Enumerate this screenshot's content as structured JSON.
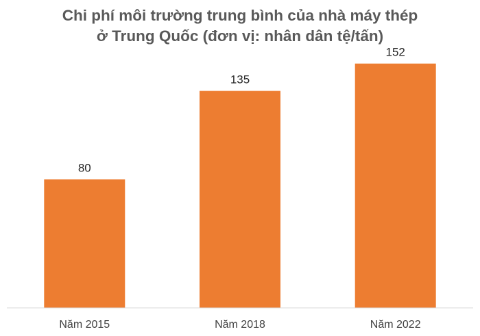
{
  "chart_data": {
    "type": "bar",
    "title_lines": [
      "Chi phí môi trường trung bình của nhà máy thép",
      "ở Trung Quốc (đơn vị: nhân dân tệ/tấn)"
    ],
    "categories": [
      "Năm 2015",
      "Năm 2018",
      "Năm 2022"
    ],
    "values": [
      80,
      135,
      152
    ],
    "xlabel": "",
    "ylabel": "",
    "ylim": [
      0,
      160
    ],
    "grid": false,
    "legend": "none",
    "data_labels": true,
    "bar_color": "#ED7D31",
    "axis_color": "#D9D9D9"
  }
}
